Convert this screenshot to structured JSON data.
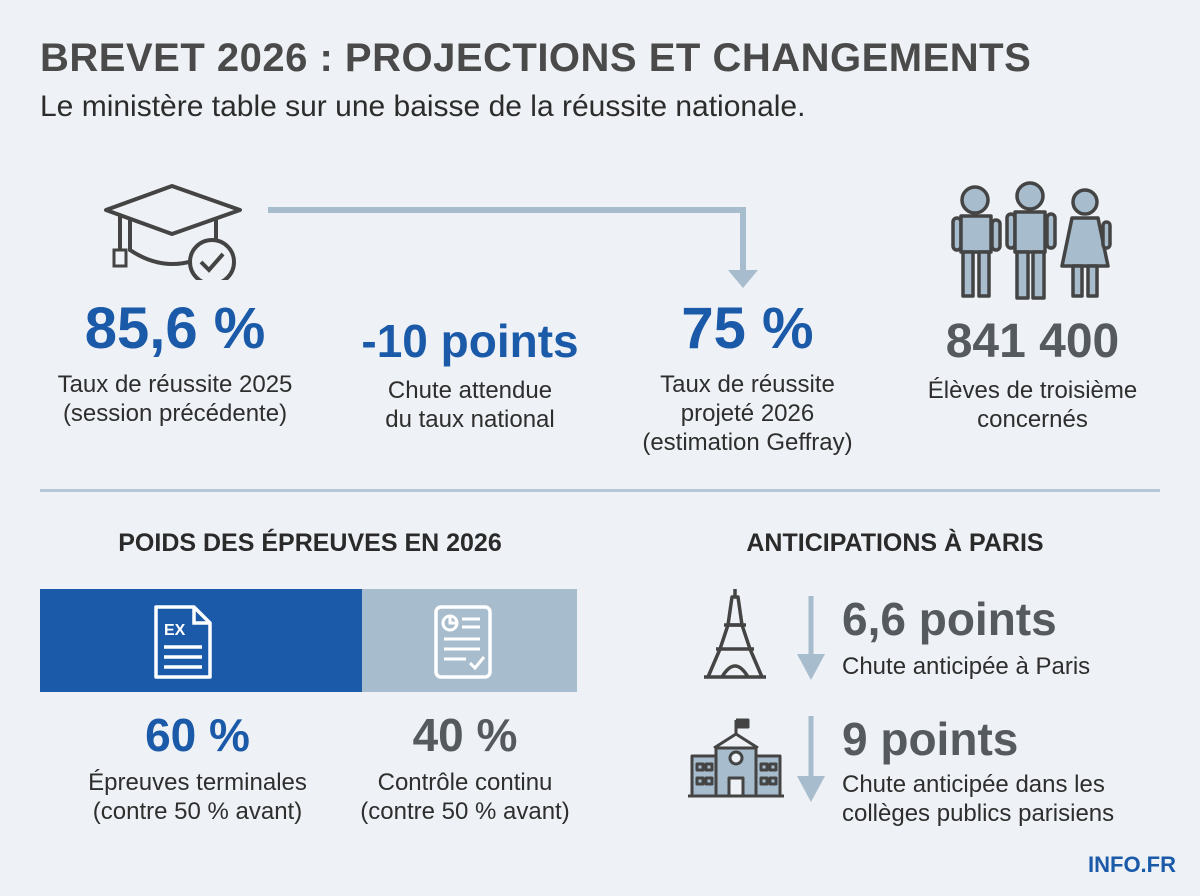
{
  "header": {
    "title": "BREVET 2026 : PROJECTIONS ET CHANGEMENTS",
    "subtitle": "Le ministère table sur une baisse de la réussite nationale."
  },
  "stats": [
    {
      "value": "85,6 %",
      "label_line1": "Taux de réussite 2025",
      "label_line2": "(session précédente)",
      "label_line3": "",
      "icon": "graduation-cap-check-icon"
    },
    {
      "value": "-10 points",
      "label_line1": "Chute attendue",
      "label_line2": "du taux national",
      "label_line3": ""
    },
    {
      "value": "75 %",
      "label_line1": "Taux de réussite",
      "label_line2": "projeté 2026",
      "label_line3": "(estimation Geffray)"
    },
    {
      "value": "841 400",
      "label_line1": "Élèves de troisième",
      "label_line2": "concernés",
      "label_line3": "",
      "icon": "students-icon"
    }
  ],
  "weights": {
    "title": "POIDS DES ÉPREUVES EN 2026",
    "items": [
      {
        "value": "60 %",
        "label_line1": "Épreuves terminales",
        "label_line2": "(contre 50 % avant)",
        "icon": "exam-document-icon",
        "icon_text": "EX",
        "color": "#1a5aa8"
      },
      {
        "value": "40 %",
        "label_line1": "Contrôle continu",
        "label_line2": "(contre 50 % avant)",
        "icon": "checklist-document-icon",
        "color": "#a7bccc"
      }
    ]
  },
  "paris": {
    "title": "ANTICIPATIONS À PARIS",
    "items": [
      {
        "value": "6,6 points",
        "label_line1": "Chute anticipée à Paris",
        "label_line2": "",
        "icon": "eiffel-tower-icon"
      },
      {
        "value": "9 points",
        "label_line1": "Chute anticipée dans les",
        "label_line2": "collèges publics parisiens",
        "icon": "school-building-icon"
      }
    ]
  },
  "brand": "INFO.FR",
  "colors": {
    "accent": "#1a5aa8",
    "muted": "#a7bccc",
    "text_grey": "#555a5e",
    "background": "#eef1f5"
  },
  "chart_data": {
    "type": "bar",
    "title": "POIDS DES ÉPREUVES EN 2026",
    "categories": [
      "Épreuves terminales",
      "Contrôle continu"
    ],
    "values": [
      60,
      40
    ],
    "unit": "%",
    "previous_values": [
      50,
      50
    ]
  }
}
